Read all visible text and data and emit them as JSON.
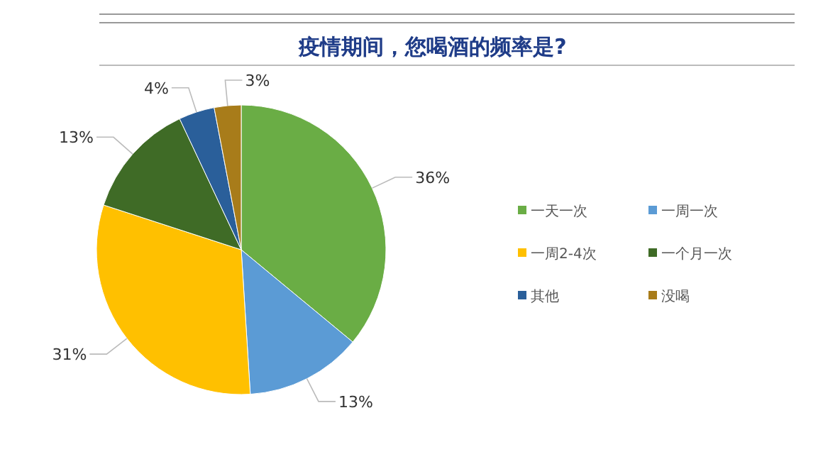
{
  "chart_data": {
    "type": "pie",
    "title": "疫情期间，您喝酒的频率是?",
    "categories": [
      "一天一次",
      "一周一次",
      "一周2-4次",
      "一个月一次",
      "其他",
      "没喝"
    ],
    "values": [
      36,
      13,
      31,
      13,
      4,
      3
    ],
    "value_labels": [
      "36%",
      "13%",
      "31%",
      "13%",
      "4%",
      "3%"
    ],
    "colors": [
      "#6aad45",
      "#5b9bd5",
      "#ffc000",
      "#3f6b26",
      "#2a5f9a",
      "#a87c1a"
    ],
    "legend": "right"
  }
}
